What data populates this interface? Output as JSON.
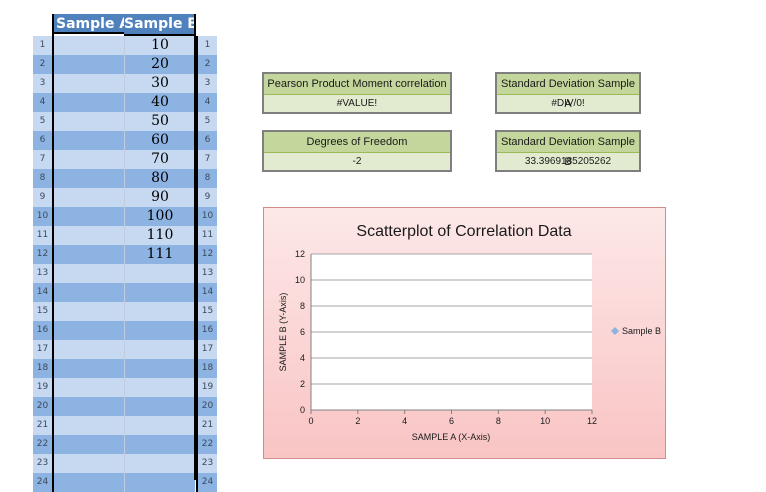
{
  "sheet": {
    "col_a_header": "Sample A",
    "col_b_header": "Sample B",
    "rows": [
      {
        "n": "1",
        "b": "10"
      },
      {
        "n": "2",
        "b": "20"
      },
      {
        "n": "3",
        "b": "30"
      },
      {
        "n": "4",
        "b": "40"
      },
      {
        "n": "5",
        "b": "50"
      },
      {
        "n": "6",
        "b": "60"
      },
      {
        "n": "7",
        "b": "70"
      },
      {
        "n": "8",
        "b": "80"
      },
      {
        "n": "9",
        "b": "90"
      },
      {
        "n": "10",
        "b": "100"
      },
      {
        "n": "11",
        "b": "110"
      },
      {
        "n": "12",
        "b": "111"
      },
      {
        "n": "13",
        "b": ""
      },
      {
        "n": "14",
        "b": ""
      },
      {
        "n": "15",
        "b": ""
      },
      {
        "n": "16",
        "b": ""
      },
      {
        "n": "17",
        "b": ""
      },
      {
        "n": "18",
        "b": ""
      },
      {
        "n": "19",
        "b": ""
      },
      {
        "n": "20",
        "b": ""
      },
      {
        "n": "21",
        "b": ""
      },
      {
        "n": "22",
        "b": ""
      },
      {
        "n": "23",
        "b": ""
      },
      {
        "n": "24",
        "b": ""
      }
    ]
  },
  "stats": {
    "pearson": {
      "title": "Pearson Product Moment correlation",
      "value": "#VALUE!"
    },
    "sd_a": {
      "title": "Standard Deviation Sample A",
      "value": "#DIV/0!"
    },
    "dof": {
      "title": "Degrees of Freedom",
      "value": "-2"
    },
    "sd_b": {
      "title": "Standard Deviation Sample B",
      "value": "33.3969185205262"
    }
  },
  "chart_data": {
    "type": "scatter",
    "title": "Scatterplot of Correlation Data",
    "xlabel": "SAMPLE A (X-Axis)",
    "ylabel": "SAMPLE B (Y-Axis)",
    "xlim": [
      0,
      12
    ],
    "ylim": [
      0,
      12
    ],
    "xticks": [
      "0",
      "2",
      "4",
      "6",
      "8",
      "10",
      "12"
    ],
    "yticks": [
      "0",
      "2",
      "4",
      "6",
      "8",
      "10",
      "12"
    ],
    "series": [
      {
        "name": "Sample B",
        "x": [],
        "y": []
      }
    ],
    "legend": "right",
    "colors": {
      "marker": "#8eb4e3"
    }
  },
  "colors": {
    "row_dark": "#8db3e2",
    "row_light": "#c6d9f1",
    "header": "#4f81bd"
  }
}
